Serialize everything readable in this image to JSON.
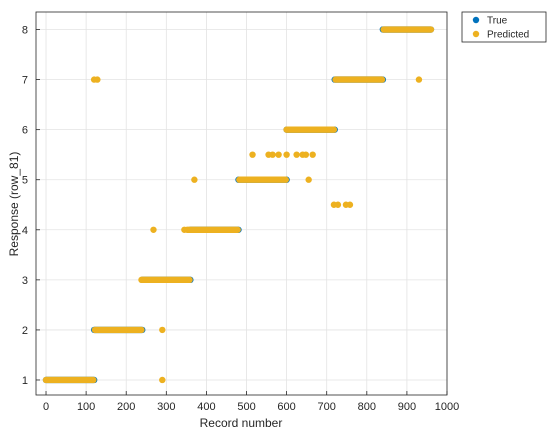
{
  "chart_data": {
    "type": "scatter",
    "xlabel": "Record number",
    "ylabel": "Response (row_81)",
    "xlim": [
      -25,
      1000
    ],
    "ylim": [
      0.7,
      8.35
    ],
    "x_ticks": [
      0,
      100,
      200,
      300,
      400,
      500,
      600,
      700,
      800,
      900,
      1000
    ],
    "y_ticks": [
      1,
      2,
      3,
      4,
      5,
      6,
      7,
      8
    ],
    "grid": true,
    "legend_position": "outside-top-right",
    "colors": {
      "true": "#0072BD",
      "predicted": "#EDB120"
    },
    "series": [
      {
        "name": "True",
        "segments": [
          {
            "x_start": 0,
            "x_end": 120,
            "y": 1
          },
          {
            "x_start": 120,
            "x_end": 240,
            "y": 2
          },
          {
            "x_start": 240,
            "x_end": 360,
            "y": 3
          },
          {
            "x_start": 360,
            "x_end": 480,
            "y": 4
          },
          {
            "x_start": 480,
            "x_end": 600,
            "y": 5
          },
          {
            "x_start": 600,
            "x_end": 720,
            "y": 6
          },
          {
            "x_start": 720,
            "x_end": 840,
            "y": 7
          },
          {
            "x_start": 840,
            "x_end": 960,
            "y": 8
          }
        ]
      },
      {
        "name": "Predicted",
        "segments": [
          {
            "x_start": 0,
            "x_end": 118,
            "y": 1
          },
          {
            "x_start": 122,
            "x_end": 238,
            "y": 2
          },
          {
            "x_start": 238,
            "x_end": 358,
            "y": 3
          },
          {
            "x_start": 352,
            "x_end": 478,
            "y": 4
          },
          {
            "x_start": 482,
            "x_end": 598,
            "y": 5
          },
          {
            "x_start": 600,
            "x_end": 718,
            "y": 6
          },
          {
            "x_start": 722,
            "x_end": 838,
            "y": 7
          },
          {
            "x_start": 842,
            "x_end": 960,
            "y": 8
          }
        ],
        "points": [
          {
            "x": 120,
            "y": 7
          },
          {
            "x": 128,
            "y": 7
          },
          {
            "x": 268,
            "y": 4
          },
          {
            "x": 290,
            "y": 2
          },
          {
            "x": 290,
            "y": 1
          },
          {
            "x": 345,
            "y": 4
          },
          {
            "x": 370,
            "y": 5
          },
          {
            "x": 515,
            "y": 5.5
          },
          {
            "x": 555,
            "y": 5.5
          },
          {
            "x": 565,
            "y": 5.5
          },
          {
            "x": 580,
            "y": 5.5
          },
          {
            "x": 600,
            "y": 5.5
          },
          {
            "x": 625,
            "y": 5.5
          },
          {
            "x": 640,
            "y": 5.5
          },
          {
            "x": 648,
            "y": 5.5
          },
          {
            "x": 665,
            "y": 5.5
          },
          {
            "x": 655,
            "y": 5
          },
          {
            "x": 718,
            "y": 4.5
          },
          {
            "x": 728,
            "y": 4.5
          },
          {
            "x": 748,
            "y": 4.5
          },
          {
            "x": 758,
            "y": 4.5
          },
          {
            "x": 930,
            "y": 7
          }
        ]
      }
    ]
  }
}
